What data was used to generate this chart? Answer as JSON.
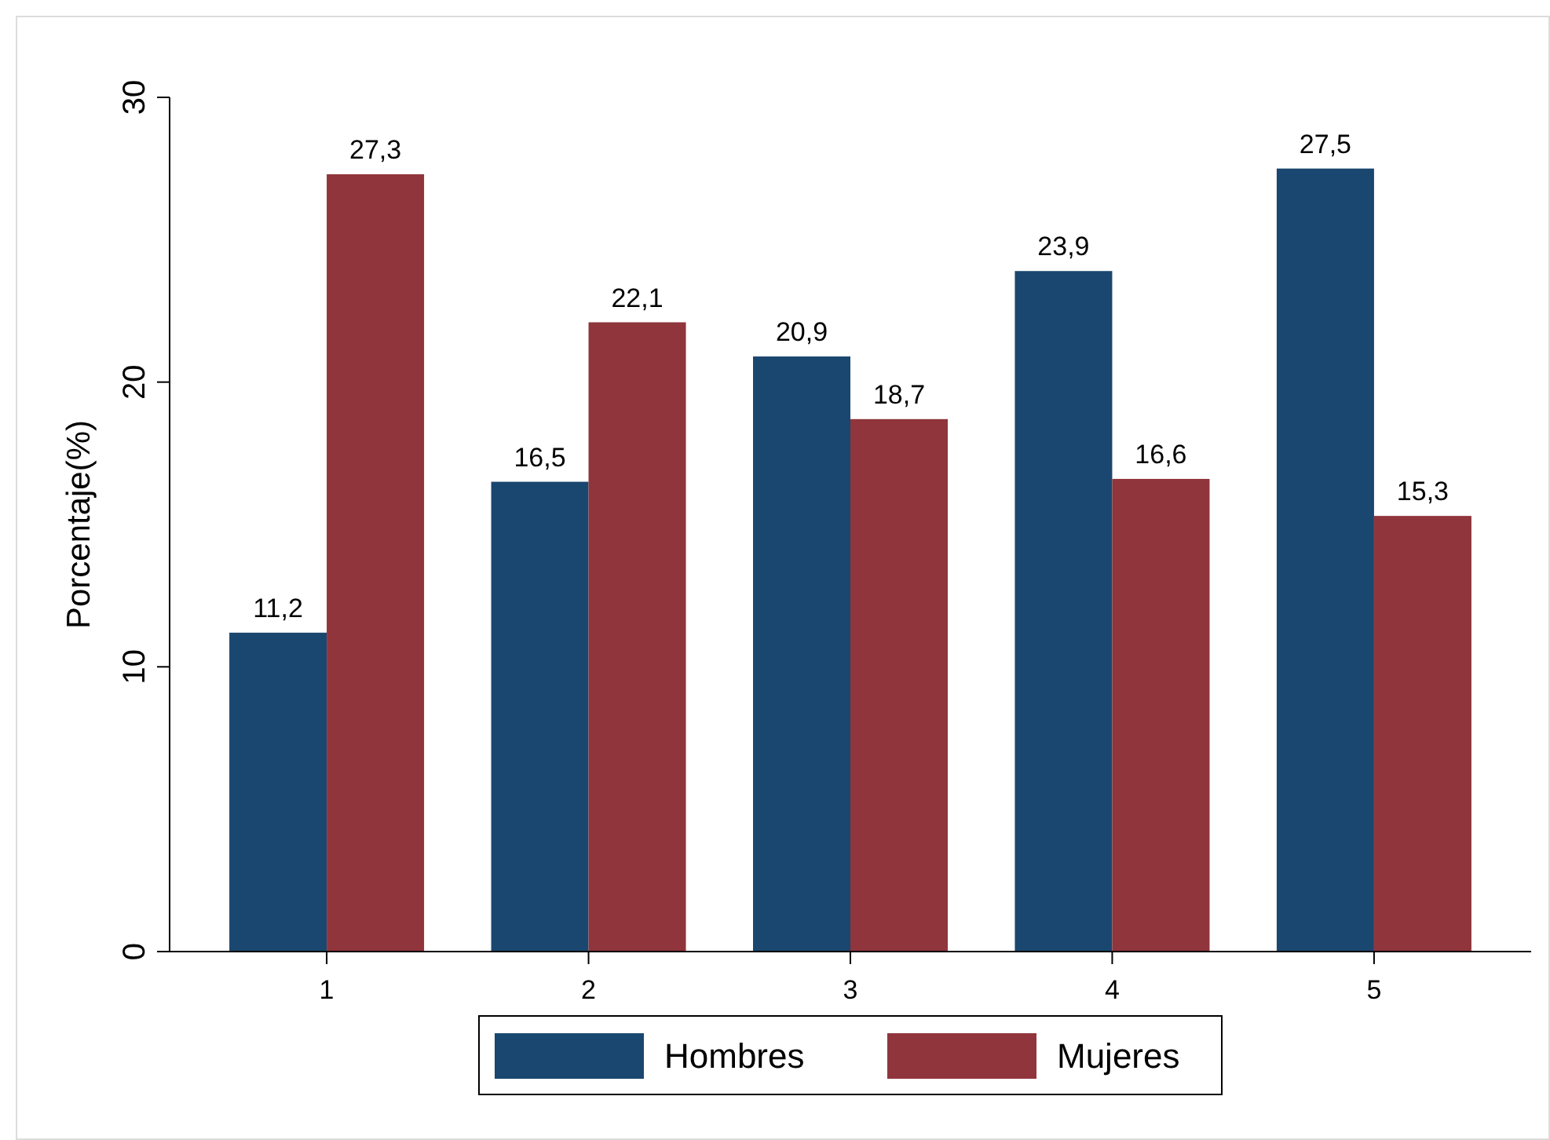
{
  "chart_data": {
    "type": "bar",
    "ylabel": "Porcentaje(%)",
    "categories": [
      "1",
      "2",
      "3",
      "4",
      "5"
    ],
    "series": [
      {
        "name": "Hombres",
        "color": "#1a476f",
        "values": [
          11.2,
          16.5,
          20.9,
          23.9,
          27.5
        ],
        "value_labels": [
          "11,2",
          "16,5",
          "20,9",
          "23,9",
          "27,5"
        ]
      },
      {
        "name": "Mujeres",
        "color": "#90353b",
        "values": [
          27.3,
          22.1,
          18.7,
          16.6,
          15.3
        ],
        "value_labels": [
          "27,3",
          "22,1",
          "18,7",
          "16,6",
          "15,3"
        ]
      }
    ],
    "ylim": [
      0,
      30
    ],
    "yticks": [
      0,
      10,
      20,
      30
    ],
    "grid": false,
    "legend": "bottom"
  }
}
